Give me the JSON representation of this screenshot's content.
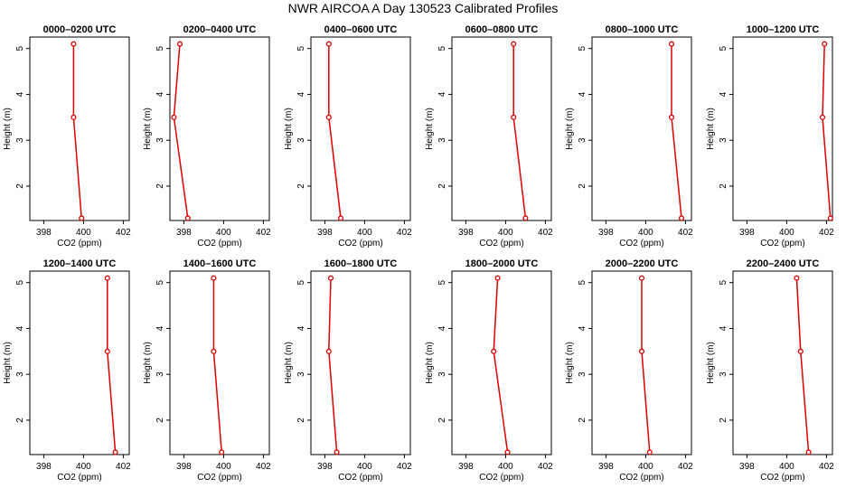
{
  "figure": {
    "title": "NWR AIRCOA A  Day 130523  Calibrated Profiles",
    "line_color": "#dd0000"
  },
  "chart_data": [
    {
      "type": "line",
      "title": "0000–0200 UTC",
      "xlabel": "CO2 (ppm)",
      "ylabel": "Height (m)",
      "xlim": [
        397.3,
        402.3
      ],
      "ylim": [
        1.25,
        5.25
      ],
      "xticks": [
        398,
        400,
        402
      ],
      "yticks": [
        2,
        3,
        4,
        5
      ],
      "series": [
        {
          "name": "profile",
          "x": [
            399.5,
            399.5,
            399.9
          ],
          "y": [
            5.1,
            3.5,
            1.3
          ]
        }
      ]
    },
    {
      "type": "line",
      "title": "0200–0400 UTC",
      "xlabel": "CO2 (ppm)",
      "ylabel": "Height (m)",
      "xlim": [
        397.3,
        402.3
      ],
      "ylim": [
        1.25,
        5.25
      ],
      "xticks": [
        398,
        400,
        402
      ],
      "yticks": [
        2,
        3,
        4,
        5
      ],
      "series": [
        {
          "name": "profile",
          "x": [
            397.8,
            397.5,
            398.2
          ],
          "y": [
            5.1,
            3.5,
            1.3
          ]
        }
      ]
    },
    {
      "type": "line",
      "title": "0400–0600 UTC",
      "xlabel": "CO2 (ppm)",
      "ylabel": "Height (m)",
      "xlim": [
        397.3,
        402.3
      ],
      "ylim": [
        1.25,
        5.25
      ],
      "xticks": [
        398,
        400,
        402
      ],
      "yticks": [
        2,
        3,
        4,
        5
      ],
      "series": [
        {
          "name": "profile",
          "x": [
            398.2,
            398.2,
            398.8
          ],
          "y": [
            5.1,
            3.5,
            1.3
          ]
        }
      ]
    },
    {
      "type": "line",
      "title": "0600–0800 UTC",
      "xlabel": "CO2 (ppm)",
      "ylabel": "Height (m)",
      "xlim": [
        397.3,
        402.3
      ],
      "ylim": [
        1.25,
        5.25
      ],
      "xticks": [
        398,
        400,
        402
      ],
      "yticks": [
        2,
        3,
        4,
        5
      ],
      "series": [
        {
          "name": "profile",
          "x": [
            400.4,
            400.4,
            401.0
          ],
          "y": [
            5.1,
            3.5,
            1.3
          ]
        }
      ]
    },
    {
      "type": "line",
      "title": "0800–1000 UTC",
      "xlabel": "CO2 (ppm)",
      "ylabel": "Height (m)",
      "xlim": [
        397.3,
        402.3
      ],
      "ylim": [
        1.25,
        5.25
      ],
      "xticks": [
        398,
        400,
        402
      ],
      "yticks": [
        2,
        3,
        4,
        5
      ],
      "series": [
        {
          "name": "profile",
          "x": [
            401.3,
            401.3,
            401.8
          ],
          "y": [
            5.1,
            3.5,
            1.3
          ]
        }
      ]
    },
    {
      "type": "line",
      "title": "1000–1200 UTC",
      "xlabel": "CO2 (ppm)",
      "ylabel": "Height (m)",
      "xlim": [
        397.3,
        402.3
      ],
      "ylim": [
        1.25,
        5.25
      ],
      "xticks": [
        398,
        400,
        402
      ],
      "yticks": [
        2,
        3,
        4,
        5
      ],
      "series": [
        {
          "name": "profile",
          "x": [
            401.9,
            401.8,
            402.2
          ],
          "y": [
            5.1,
            3.5,
            1.3
          ]
        }
      ]
    },
    {
      "type": "line",
      "title": "1200–1400 UTC",
      "xlabel": "CO2 (ppm)",
      "ylabel": "Height (m)",
      "xlim": [
        397.3,
        402.3
      ],
      "ylim": [
        1.25,
        5.25
      ],
      "xticks": [
        398,
        400,
        402
      ],
      "yticks": [
        2,
        3,
        4,
        5
      ],
      "series": [
        {
          "name": "profile",
          "x": [
            401.2,
            401.2,
            401.6
          ],
          "y": [
            5.1,
            3.5,
            1.3
          ]
        }
      ]
    },
    {
      "type": "line",
      "title": "1400–1600 UTC",
      "xlabel": "CO2 (ppm)",
      "ylabel": "Height (m)",
      "xlim": [
        397.3,
        402.3
      ],
      "ylim": [
        1.25,
        5.25
      ],
      "xticks": [
        398,
        400,
        402
      ],
      "yticks": [
        2,
        3,
        4,
        5
      ],
      "series": [
        {
          "name": "profile",
          "x": [
            399.5,
            399.5,
            399.9
          ],
          "y": [
            5.1,
            3.5,
            1.3
          ]
        }
      ]
    },
    {
      "type": "line",
      "title": "1600–1800 UTC",
      "xlabel": "CO2 (ppm)",
      "ylabel": "Height (m)",
      "xlim": [
        397.3,
        402.3
      ],
      "ylim": [
        1.25,
        5.25
      ],
      "xticks": [
        398,
        400,
        402
      ],
      "yticks": [
        2,
        3,
        4,
        5
      ],
      "series": [
        {
          "name": "profile",
          "x": [
            398.3,
            398.2,
            398.6
          ],
          "y": [
            5.1,
            3.5,
            1.3
          ]
        }
      ]
    },
    {
      "type": "line",
      "title": "1800–2000 UTC",
      "xlabel": "CO2 (ppm)",
      "ylabel": "Height (m)",
      "xlim": [
        397.3,
        402.3
      ],
      "ylim": [
        1.25,
        5.25
      ],
      "xticks": [
        398,
        400,
        402
      ],
      "yticks": [
        2,
        3,
        4,
        5
      ],
      "series": [
        {
          "name": "profile",
          "x": [
            399.6,
            399.4,
            400.1
          ],
          "y": [
            5.1,
            3.5,
            1.3
          ]
        }
      ]
    },
    {
      "type": "line",
      "title": "2000–2200 UTC",
      "xlabel": "CO2 (ppm)",
      "ylabel": "Height (m)",
      "xlim": [
        397.3,
        402.3
      ],
      "ylim": [
        1.25,
        5.25
      ],
      "xticks": [
        398,
        400,
        402
      ],
      "yticks": [
        2,
        3,
        4,
        5
      ],
      "series": [
        {
          "name": "profile",
          "x": [
            399.8,
            399.8,
            400.2
          ],
          "y": [
            5.1,
            3.5,
            1.3
          ]
        }
      ]
    },
    {
      "type": "line",
      "title": "2200–2400 UTC",
      "xlabel": "CO2 (ppm)",
      "ylabel": "Height (m)",
      "xlim": [
        397.3,
        402.3
      ],
      "ylim": [
        1.25,
        5.25
      ],
      "xticks": [
        398,
        400,
        402
      ],
      "yticks": [
        2,
        3,
        4,
        5
      ],
      "series": [
        {
          "name": "profile",
          "x": [
            400.5,
            400.7,
            401.1
          ],
          "y": [
            5.1,
            3.5,
            1.3
          ]
        }
      ]
    }
  ]
}
